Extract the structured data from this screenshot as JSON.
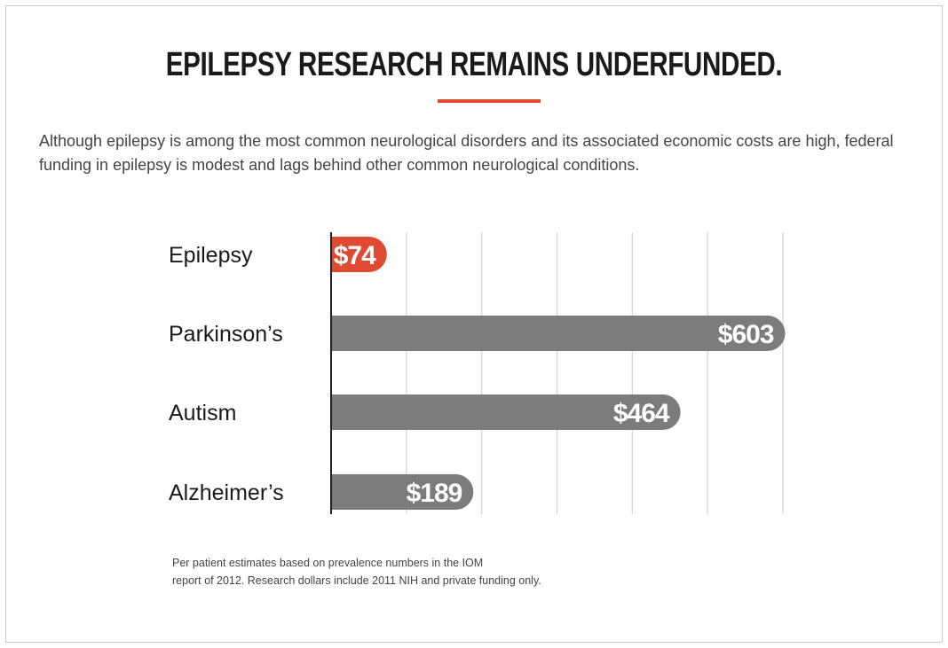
{
  "title": "EPILEPSY RESEARCH REMAINS UNDERFUNDED.",
  "subtitle": "Although epilepsy is among the most common neurological disorders and its associated economic costs are high, federal funding in epilepsy is modest and lags behind other common neurological conditions.",
  "footnote_line1": "Per patient estimates based on prevalence numbers in the IOM",
  "footnote_line2": "report of 2012. Research dollars include 2011 NIH and private funding only.",
  "colors": {
    "highlight": "#e04a33",
    "bar": "#7b7c7e",
    "grid": "#d6d6d6",
    "axis": "#222222",
    "label": "#1a1a1a",
    "bar_text": "#ffffff"
  },
  "chart_data": {
    "type": "bar",
    "orientation": "horizontal",
    "categories": [
      "Epilepsy",
      "Parkinson’s",
      "Autism",
      "Alzheimer’s"
    ],
    "values": [
      74,
      603,
      464,
      189
    ],
    "value_labels": [
      "$74",
      "$603",
      "$464",
      "$189"
    ],
    "highlight_category": "Epilepsy",
    "xlim": [
      0,
      600
    ],
    "grid_step": 100,
    "grid": true,
    "xlabel": "",
    "ylabel": ""
  }
}
